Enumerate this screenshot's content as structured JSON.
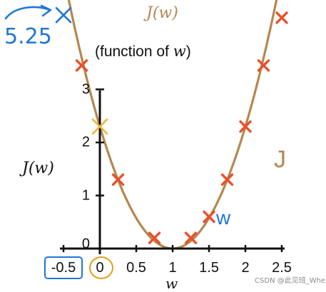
{
  "colors": {
    "curve": "#b5874f",
    "marker": "#e8502a",
    "axis": "#111111",
    "handwriting_blue": "#1f77d4",
    "highlight_orange": "#f0b43a",
    "highlight_circle": "#e0a017"
  },
  "labels": {
    "curve_title": "J(w)",
    "subtitle_prefix": "(function of ",
    "subtitle_var": "w",
    "subtitle_suffix": ")",
    "handwritten_value": "5.25",
    "curve_annotation": "J",
    "w_annotation": "w",
    "watermark": "CSDN @此见班_Wher"
  },
  "chart_data": {
    "type": "line",
    "xlabel": "w",
    "ylabel": "J(w)",
    "xlim": [
      -0.5,
      2.5
    ],
    "ylim": [
      0,
      3
    ],
    "x_ticks": [
      "-0.5",
      "0",
      "0.5",
      "1",
      "1.5",
      "2",
      "2.5"
    ],
    "x_tick_values": [
      -0.5,
      0,
      0.5,
      1,
      1.5,
      2,
      2.5
    ],
    "y_ticks": [
      "0",
      "1",
      "2",
      "3"
    ],
    "y_tick_values": [
      0,
      1,
      2,
      3
    ],
    "curve": {
      "formula": "2.3 * (w - 1)^2",
      "x_start": -0.5,
      "x_end": 2.5
    },
    "points": [
      {
        "x": -0.25,
        "y": 3.45
      },
      {
        "x": 0.25,
        "y": 1.3
      },
      {
        "x": 0.75,
        "y": 0.2
      },
      {
        "x": 1.25,
        "y": 0.2
      },
      {
        "x": 1.5,
        "y": 0.6
      },
      {
        "x": 1.75,
        "y": 1.3
      },
      {
        "x": 2.0,
        "y": 2.3
      },
      {
        "x": 2.25,
        "y": 3.45
      },
      {
        "x": 2.5,
        "y": 4.35
      }
    ],
    "highlight_points": [
      {
        "x": 0,
        "y": 2.3,
        "color": "orange"
      },
      {
        "x": -0.5,
        "y": 4.4,
        "color": "blue"
      }
    ],
    "grid": false
  }
}
